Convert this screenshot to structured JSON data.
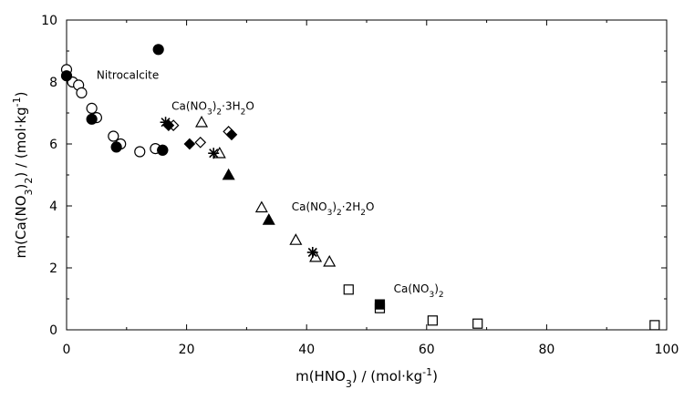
{
  "chart_data": {
    "type": "scatter",
    "title": "",
    "xlim": [
      0,
      100
    ],
    "ylim": [
      0,
      10
    ],
    "x_ticks": [
      "0",
      "20",
      "40",
      "60",
      "80",
      "100"
    ],
    "y_ticks": [
      "0",
      "2",
      "4",
      "6",
      "8",
      "10"
    ],
    "grid": false,
    "legend": "none",
    "xlabel_parts": [
      "m(HNO",
      "3",
      ") / (mol·kg",
      "-1",
      ")"
    ],
    "ylabel_parts": [
      "m(Ca(NO",
      "3",
      ")",
      "2",
      ") / (mol·kg",
      "-1",
      ")"
    ],
    "annotations": [
      {
        "name": "annotation-nitrocalcite",
        "x": 5.0,
        "y": 8.1,
        "parts": [
          [
            "Nitrocalcite",
            ""
          ]
        ]
      },
      {
        "name": "annotation-trihydrate",
        "x": 17.5,
        "y": 7.1,
        "parts": [
          [
            "Ca(NO",
            ""
          ],
          [
            "3",
            "sub"
          ],
          [
            ")",
            ""
          ],
          [
            "2",
            "sub"
          ],
          [
            "·3H",
            ""
          ],
          [
            "2",
            "sub"
          ],
          [
            "O",
            ""
          ]
        ]
      },
      {
        "name": "annotation-dihydrate",
        "x": 37.5,
        "y": 3.85,
        "parts": [
          [
            "Ca(NO",
            ""
          ],
          [
            "3",
            "sub"
          ],
          [
            ")",
            ""
          ],
          [
            "2",
            "sub"
          ],
          [
            "·2H",
            ""
          ],
          [
            "2",
            "sub"
          ],
          [
            "O",
            ""
          ]
        ]
      },
      {
        "name": "annotation-anhydrous",
        "x": 54.5,
        "y": 1.2,
        "parts": [
          [
            "Ca(NO",
            ""
          ],
          [
            "3",
            "sub"
          ],
          [
            ")",
            ""
          ],
          [
            "2",
            "sub"
          ]
        ]
      }
    ],
    "series": [
      {
        "marker": "circle-open",
        "points": [
          [
            0.0,
            8.4
          ],
          [
            1.0,
            8.0
          ],
          [
            2.0,
            7.9
          ],
          [
            2.5,
            7.65
          ],
          [
            4.2,
            7.15
          ],
          [
            5.0,
            6.85
          ],
          [
            7.8,
            6.25
          ],
          [
            9.0,
            6.0
          ],
          [
            12.2,
            5.75
          ],
          [
            14.8,
            5.85
          ],
          [
            16.0,
            5.8
          ]
        ]
      },
      {
        "marker": "circle-filled",
        "points": [
          [
            0.0,
            8.2
          ],
          [
            4.2,
            6.8
          ],
          [
            8.3,
            5.9
          ],
          [
            15.3,
            9.05
          ],
          [
            16.0,
            5.8
          ]
        ]
      },
      {
        "marker": "diamond-open",
        "points": [
          [
            17.8,
            6.6
          ],
          [
            22.3,
            6.05
          ],
          [
            27.0,
            6.4
          ]
        ]
      },
      {
        "marker": "diamond-filled",
        "points": [
          [
            17.0,
            6.6
          ],
          [
            20.5,
            6.0
          ],
          [
            27.5,
            6.3
          ]
        ]
      },
      {
        "marker": "triangle-open",
        "points": [
          [
            22.5,
            6.7
          ],
          [
            25.5,
            5.7
          ],
          [
            32.5,
            3.95
          ],
          [
            38.2,
            2.9
          ],
          [
            41.5,
            2.35
          ],
          [
            43.8,
            2.2
          ]
        ]
      },
      {
        "marker": "triangle-filled",
        "points": [
          [
            27.0,
            5.0
          ],
          [
            33.7,
            3.55
          ]
        ]
      },
      {
        "marker": "star",
        "points": [
          [
            16.5,
            6.7
          ],
          [
            24.5,
            5.7
          ],
          [
            41.0,
            2.5
          ]
        ]
      },
      {
        "marker": "square-open",
        "points": [
          [
            47.0,
            1.3
          ],
          [
            52.2,
            0.7
          ],
          [
            61.0,
            0.3
          ],
          [
            68.5,
            0.2
          ],
          [
            98.0,
            0.15
          ]
        ]
      },
      {
        "marker": "square-filled",
        "points": [
          [
            52.2,
            0.82
          ]
        ]
      }
    ]
  }
}
